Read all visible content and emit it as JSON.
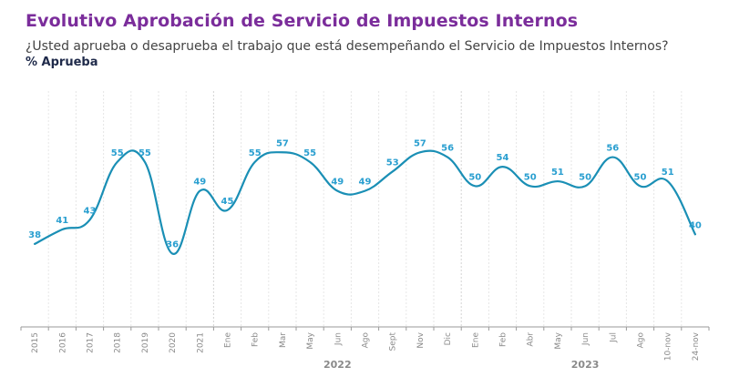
{
  "header": {
    "title": "Evolutivo Aprobación de Servicio de Impuestos Internos",
    "subtitle": "¿Usted aprueba o desaprueba el trabajo que está desempeñando el Servicio de Impuestos Internos?",
    "metric": "% Aprueba"
  },
  "colors": {
    "title": "#7b2d9b",
    "line": "#1a8fb5",
    "labels": "#2a9fd0",
    "axis": "#9a9a9a",
    "grid": "#e6e6e6"
  },
  "chart_data": {
    "type": "line",
    "title": "Evolutivo Aprobación de Servicio de Impuestos Internos",
    "ylabel": "% Aprueba",
    "xlabel": "",
    "categories": [
      "2015",
      "2016",
      "2017",
      "2018",
      "2019",
      "2020",
      "2021",
      "Ene",
      "Feb",
      "Mar",
      "May",
      "Jun",
      "Ago",
      "Sept",
      "Nov",
      "Dic",
      "Ene",
      "Feb",
      "Abr",
      "May",
      "Jun",
      "Jul",
      "Ago",
      "10-nov",
      "24-nov"
    ],
    "series": [
      {
        "name": "% Aprueba",
        "values": [
          38,
          41,
          43,
          55,
          55,
          36,
          49,
          45,
          55,
          57,
          55,
          49,
          49,
          53,
          57,
          56,
          50,
          54,
          50,
          51,
          50,
          56,
          50,
          51,
          40
        ]
      }
    ],
    "groups": [
      {
        "label": "2022",
        "start": 7,
        "end": 15
      },
      {
        "label": "2023",
        "start": 16,
        "end": 24
      }
    ],
    "ylim": [
      20.8,
      69.7
    ],
    "grid": "vertical",
    "smooth": true,
    "legend": "none"
  }
}
